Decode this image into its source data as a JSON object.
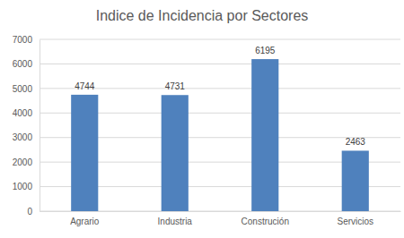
{
  "chart_data": {
    "type": "bar",
    "title": "Indice de Incidencia por Sectores",
    "categories": [
      "Agrario",
      "Industria",
      "Construción",
      "Servicios"
    ],
    "values": [
      4744,
      4731,
      6195,
      2463
    ],
    "color": "#4f81bd",
    "ylim": [
      0,
      7000
    ],
    "yticks": [
      0,
      1000,
      2000,
      3000,
      4000,
      5000,
      6000,
      7000
    ],
    "grid": true,
    "data_labels": true
  }
}
